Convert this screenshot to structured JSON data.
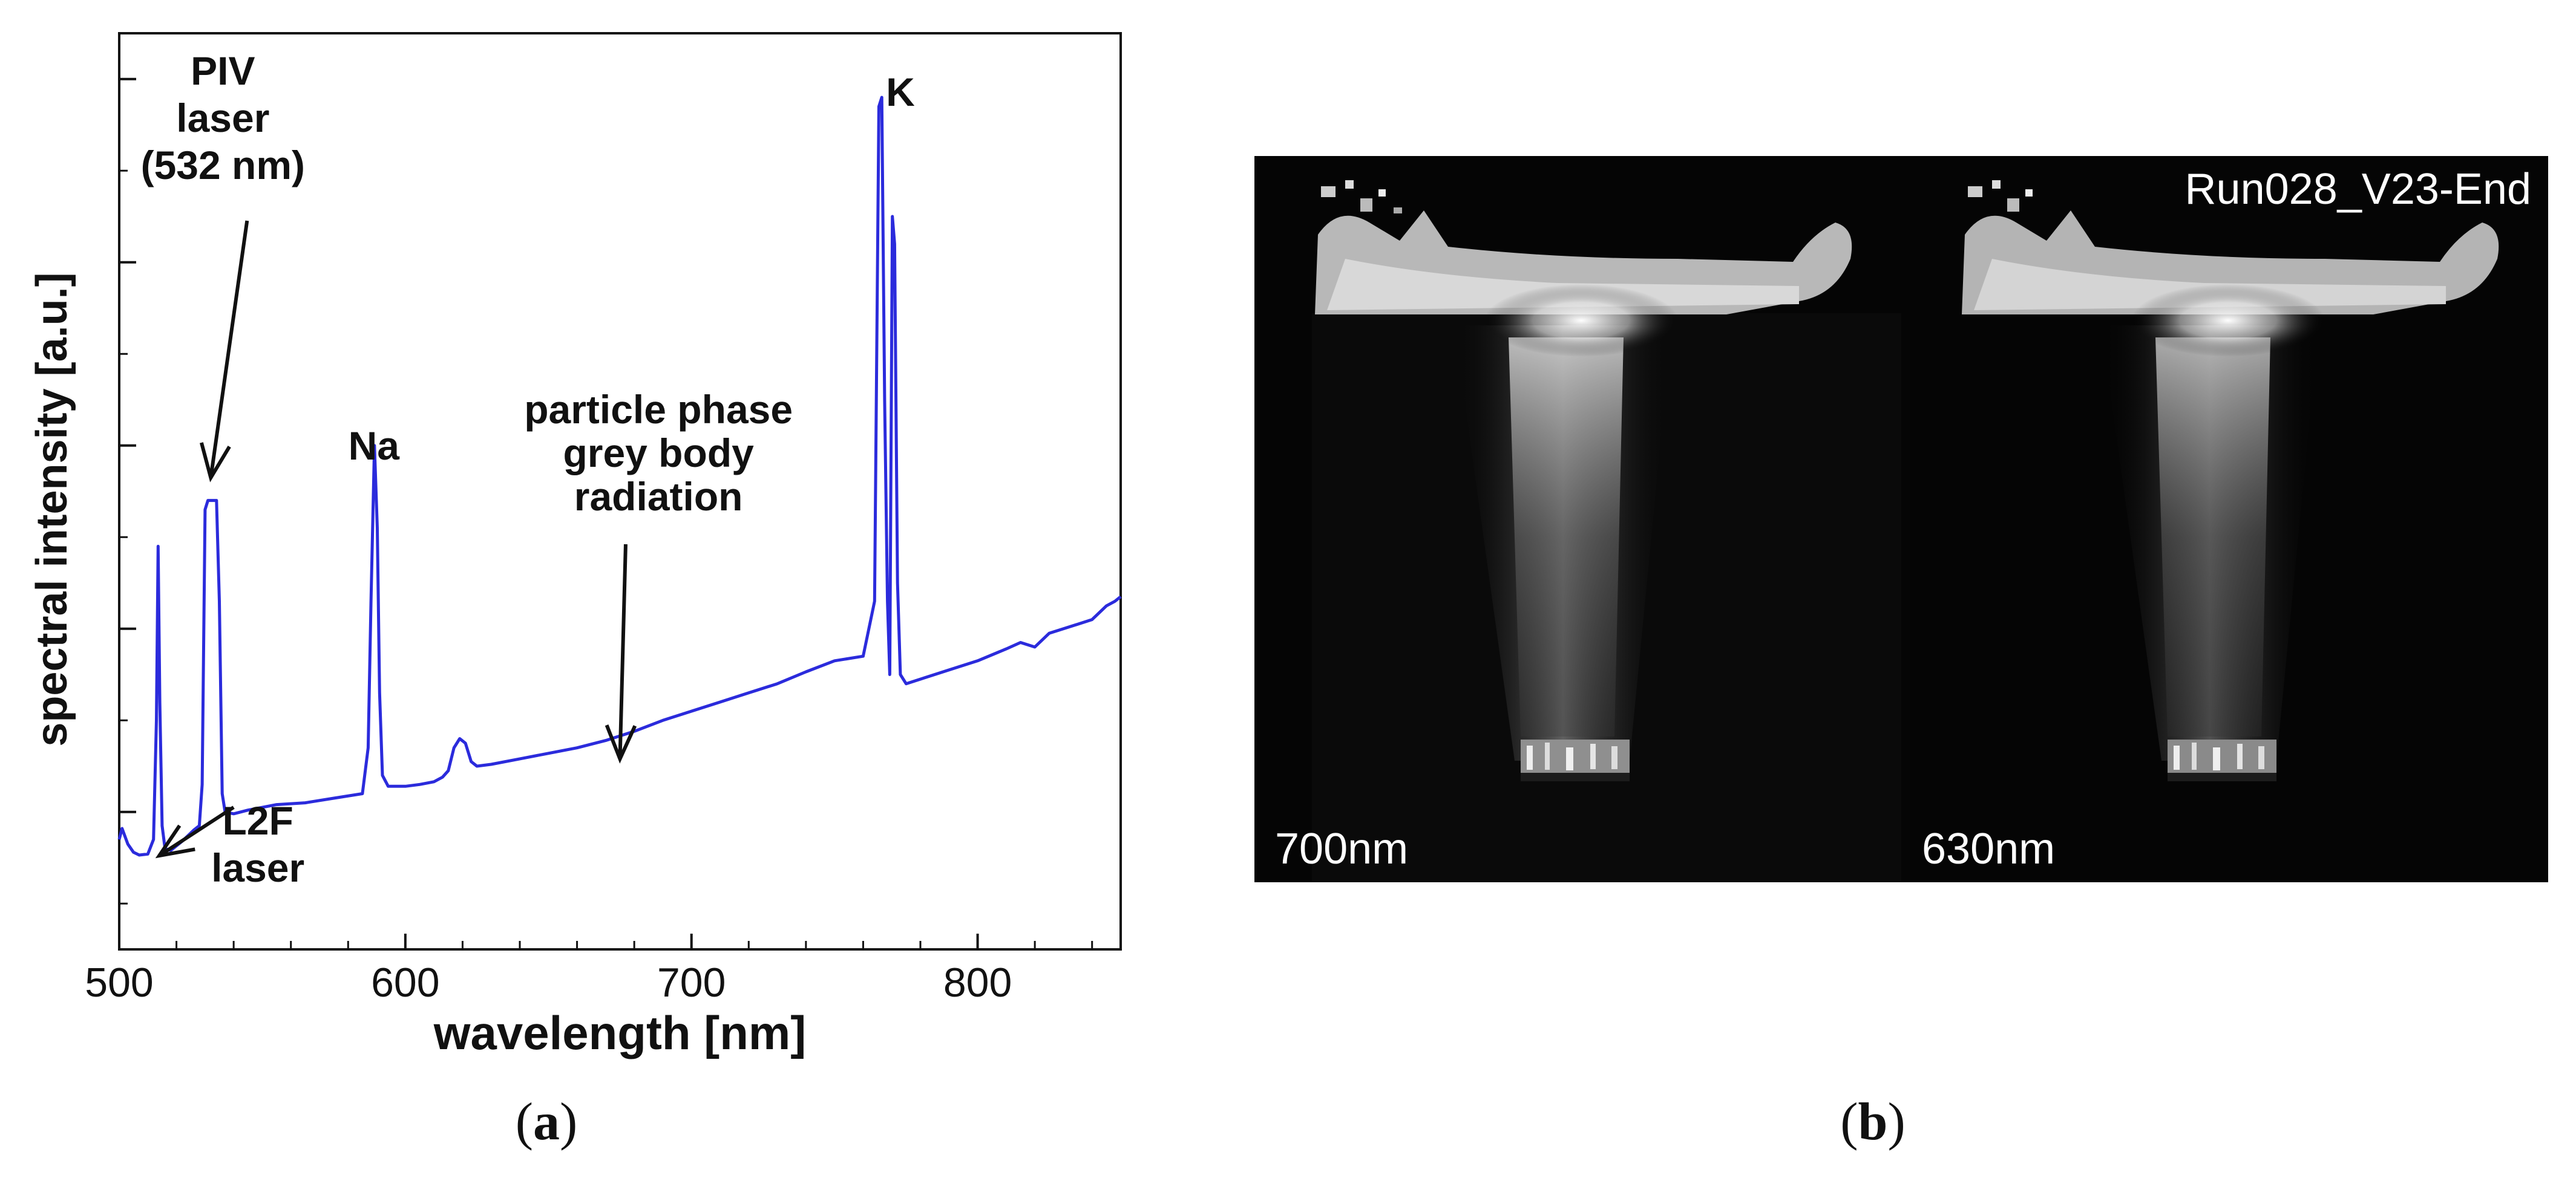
{
  "figure": {
    "panel_a_label": "a",
    "panel_b_label": "b"
  },
  "chart_data": {
    "type": "line",
    "title": "",
    "xlabel": "wavelength [nm]",
    "ylabel": "spectral intensity [a.u.]",
    "xlim": [
      500,
      850
    ],
    "ylim": [
      0,
      100
    ],
    "x_ticks": [
      500,
      600,
      700,
      800
    ],
    "y_tick_values": [
      15,
      35,
      55,
      75,
      95
    ],
    "series_color": "#2b2bdc",
    "series": [
      {
        "name": "spectrum",
        "x": [
          500,
          501,
          503,
          505,
          507,
          510,
          512,
          513,
          513.6,
          514.2,
          515,
          516,
          518,
          522,
          526,
          528,
          529,
          530,
          531,
          534,
          535,
          536,
          537,
          540,
          545,
          555,
          565,
          575,
          585,
          587,
          588,
          589.2,
          590.2,
          591,
          592,
          594,
          600,
          605,
          610,
          613,
          615,
          617,
          619,
          621,
          623,
          625,
          630,
          640,
          650,
          660,
          670,
          680,
          690,
          700,
          710,
          720,
          730,
          740,
          750,
          760,
          764,
          765.5,
          766.5,
          767.5,
          768.5,
          769.3,
          770.2,
          771,
          772,
          773,
          775,
          780,
          790,
          800,
          810,
          815,
          820,
          825,
          830,
          835,
          840,
          845,
          848,
          850
        ],
        "y": [
          12,
          13.2,
          11.5,
          10.6,
          10.3,
          10.4,
          12,
          25,
          44,
          27,
          13.5,
          11,
          10.8,
          11.8,
          13,
          13.5,
          18,
          48,
          49,
          49,
          38,
          17,
          15,
          14.8,
          15.2,
          15.8,
          16,
          16.5,
          17,
          22,
          38,
          55,
          46,
          28,
          19,
          17.8,
          17.8,
          18,
          18.3,
          18.8,
          19.5,
          22,
          23,
          22.5,
          20.5,
          20,
          20.2,
          20.8,
          21.4,
          22,
          22.8,
          23.8,
          25,
          26,
          27,
          28,
          29,
          30.3,
          31.5,
          32,
          38,
          92,
          93,
          60,
          38,
          30,
          80,
          77,
          40,
          30,
          29,
          29.5,
          30.5,
          31.5,
          32.8,
          33.5,
          33,
          34.5,
          35,
          35.5,
          36,
          37.5,
          38,
          38.5
        ]
      }
    ],
    "annotations": [
      {
        "id": "piv",
        "lines": [
          "PIV",
          "laser",
          "(532 nm)"
        ]
      },
      {
        "id": "na",
        "lines": [
          "Na"
        ]
      },
      {
        "id": "k",
        "lines": [
          "K"
        ]
      },
      {
        "id": "grey",
        "lines": [
          "particle phase",
          "grey body",
          "radiation"
        ]
      },
      {
        "id": "l2f",
        "lines": [
          "L2F",
          "laser"
        ]
      }
    ]
  },
  "images": {
    "frame_left_label": "700nm",
    "frame_right_label": "630nm",
    "run_label": "Run028_V23-End"
  }
}
